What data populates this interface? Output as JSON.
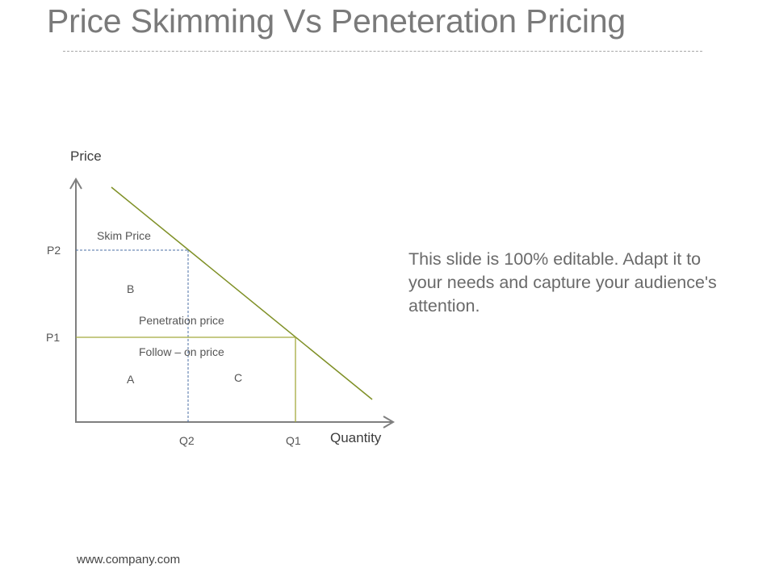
{
  "slide": {
    "title": "Price Skimming Vs Peneteration Pricing",
    "description": "This slide is 100% editable. Adapt it to your needs and capture your audience's attention.",
    "footer": "www.company.com"
  },
  "diagram": {
    "y_axis_label": "Price",
    "x_axis_label": "Quantity",
    "price_levels": [
      "P2",
      "P1"
    ],
    "quantity_levels": [
      "Q2",
      "Q1"
    ],
    "annotations": {
      "skim_price": "Skim Price",
      "penetration_price": "Penetration price",
      "follow_on_price": "Follow – on price"
    },
    "regions": [
      "A",
      "B",
      "C"
    ],
    "colors": {
      "demand_line": "#7f9026",
      "p1_lines": "#a5ab3d",
      "p2_lines": "#4b6fa5",
      "axes": "#7f7f7f"
    }
  }
}
